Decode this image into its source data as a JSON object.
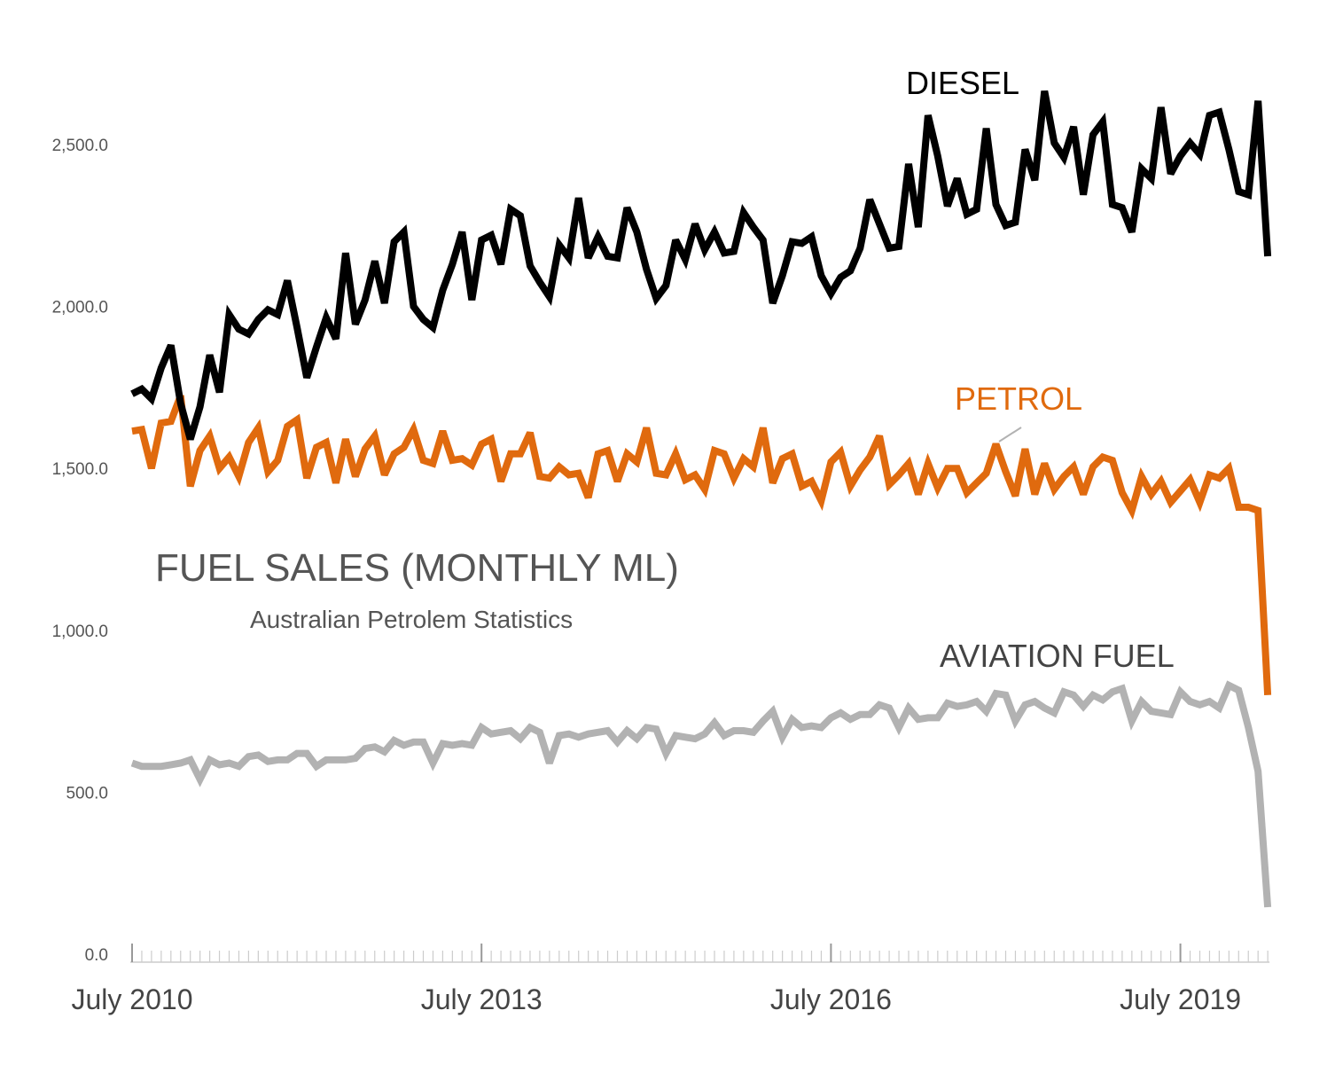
{
  "chart_data": {
    "type": "line",
    "title": "FUEL SALES  (MONTHLY ML)",
    "subtitle": "Australian Petrolem Statistics",
    "ylim": [
      0,
      2750
    ],
    "y_ticks": [
      {
        "value": 0,
        "label": "0.0"
      },
      {
        "value": 500,
        "label": "500.0"
      },
      {
        "value": 1000,
        "label": "1,000.0"
      },
      {
        "value": 1500,
        "label": "1,500.0"
      },
      {
        "value": 2000,
        "label": "2,000.0"
      },
      {
        "value": 2500,
        "label": "2,500.0"
      }
    ],
    "x_ticks": [
      {
        "index": 0,
        "label": "July 2010"
      },
      {
        "index": 36,
        "label": "July 2013"
      },
      {
        "index": 72,
        "label": "July 2016"
      },
      {
        "index": 108,
        "label": "July 2019"
      }
    ],
    "x_start": "2010-07",
    "x_interval": "month",
    "grid": false,
    "series": [
      {
        "name": "DIESEL",
        "color": "#000000",
        "values": [
          1730,
          1745,
          1715,
          1810,
          1880,
          1700,
          1590,
          1690,
          1850,
          1735,
          1975,
          1930,
          1915,
          1960,
          1990,
          1975,
          2080,
          1935,
          1780,
          1875,
          1965,
          1900,
          2165,
          1945,
          2020,
          2140,
          2010,
          2200,
          2230,
          2000,
          1960,
          1935,
          2050,
          2130,
          2230,
          2020,
          2205,
          2220,
          2130,
          2300,
          2280,
          2125,
          2075,
          2030,
          2190,
          2150,
          2335,
          2150,
          2215,
          2155,
          2150,
          2305,
          2230,
          2115,
          2025,
          2065,
          2205,
          2145,
          2255,
          2175,
          2230,
          2165,
          2170,
          2290,
          2245,
          2205,
          2010,
          2095,
          2200,
          2195,
          2215,
          2095,
          2040,
          2090,
          2110,
          2180,
          2330,
          2255,
          2180,
          2185,
          2440,
          2245,
          2590,
          2465,
          2310,
          2395,
          2285,
          2300,
          2550,
          2315,
          2250,
          2260,
          2485,
          2390,
          2665,
          2505,
          2460,
          2555,
          2345,
          2530,
          2570,
          2315,
          2305,
          2230,
          2425,
          2395,
          2615,
          2410,
          2465,
          2505,
          2470,
          2590,
          2600,
          2485,
          2355,
          2345,
          2635,
          2155
        ]
      },
      {
        "name": "PETROL",
        "color": "#E06A0E",
        "values": [
          1615,
          1620,
          1500,
          1640,
          1645,
          1725,
          1445,
          1555,
          1600,
          1500,
          1535,
          1475,
          1580,
          1625,
          1490,
          1525,
          1630,
          1650,
          1470,
          1565,
          1580,
          1455,
          1590,
          1475,
          1560,
          1600,
          1480,
          1545,
          1565,
          1620,
          1525,
          1515,
          1615,
          1525,
          1530,
          1510,
          1575,
          1590,
          1460,
          1545,
          1545,
          1610,
          1475,
          1470,
          1505,
          1480,
          1485,
          1410,
          1545,
          1555,
          1460,
          1545,
          1520,
          1625,
          1485,
          1480,
          1545,
          1465,
          1480,
          1435,
          1555,
          1545,
          1470,
          1530,
          1505,
          1625,
          1455,
          1530,
          1545,
          1445,
          1460,
          1400,
          1520,
          1550,
          1445,
          1495,
          1535,
          1600,
          1450,
          1480,
          1515,
          1420,
          1515,
          1440,
          1500,
          1500,
          1425,
          1455,
          1485,
          1575,
          1490,
          1415,
          1560,
          1420,
          1515,
          1435,
          1475,
          1505,
          1420,
          1505,
          1535,
          1525,
          1425,
          1370,
          1475,
          1420,
          1460,
          1395,
          1430,
          1465,
          1395,
          1480,
          1470,
          1500,
          1380,
          1380,
          1370,
          800
        ]
      },
      {
        "name": "AVIATION FUEL",
        "color": "#B2B2B2",
        "values": [
          590,
          580,
          580,
          580,
          585,
          590,
          600,
          540,
          600,
          585,
          590,
          580,
          610,
          615,
          595,
          600,
          600,
          620,
          620,
          580,
          600,
          600,
          600,
          605,
          635,
          640,
          625,
          660,
          645,
          655,
          655,
          590,
          650,
          645,
          650,
          645,
          700,
          680,
          685,
          690,
          665,
          700,
          685,
          590,
          675,
          680,
          670,
          680,
          685,
          690,
          655,
          690,
          665,
          700,
          695,
          620,
          675,
          670,
          665,
          680,
          715,
          675,
          690,
          690,
          685,
          720,
          750,
          670,
          725,
          700,
          705,
          700,
          730,
          745,
          725,
          740,
          740,
          770,
          760,
          700,
          760,
          725,
          730,
          730,
          775,
          765,
          770,
          780,
          750,
          805,
          800,
          720,
          770,
          780,
          760,
          745,
          810,
          800,
          765,
          800,
          785,
          810,
          820,
          720,
          780,
          750,
          745,
          740,
          810,
          780,
          770,
          780,
          760,
          830,
          815,
          700,
          565,
          145
        ]
      }
    ]
  }
}
